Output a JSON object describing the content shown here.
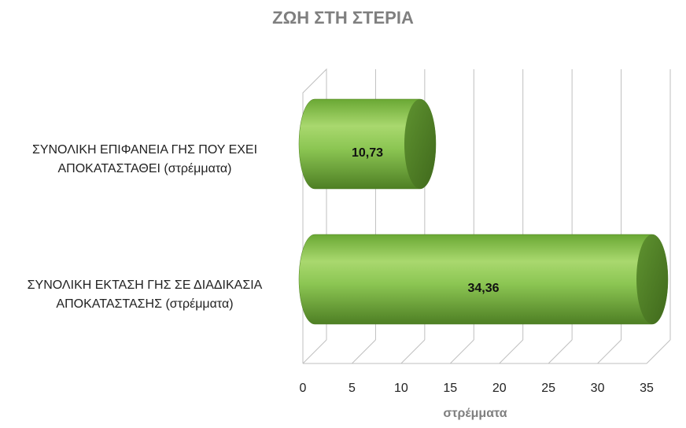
{
  "chart_data": {
    "type": "bar3d",
    "orientation": "horizontal",
    "title": "ΖΩΗ ΣΤΗ ΣΤΕΡΙΑ",
    "categories": [
      "ΣΥΝΟΛΙΚΗ ΕΠΙΦΑΝΕΙΑ ΓΗΣ ΠΟΥ ΕΧΕΙ\nΑΠΟΚΑΤΑΣΤΑΘΕΙ (στρέμματα)",
      "ΣΥΝΟΛΙΚΗ ΕΚΤΑΣΗ ΓΗΣ ΣΕ ΔΙΑΔΙΚΑΣΙΑ\nΑΠΟΚΑΤΑΣΤΑΣΗΣ (στρέμματα)"
    ],
    "values": [
      10.73,
      34.36
    ],
    "value_labels": [
      "10,73",
      "34,36"
    ],
    "color": "#70ad47",
    "xlabel": "στρέμματα",
    "xlim": [
      0,
      35
    ],
    "xticks": [
      0,
      5,
      10,
      15,
      20,
      25,
      30,
      35
    ],
    "grid": true
  }
}
